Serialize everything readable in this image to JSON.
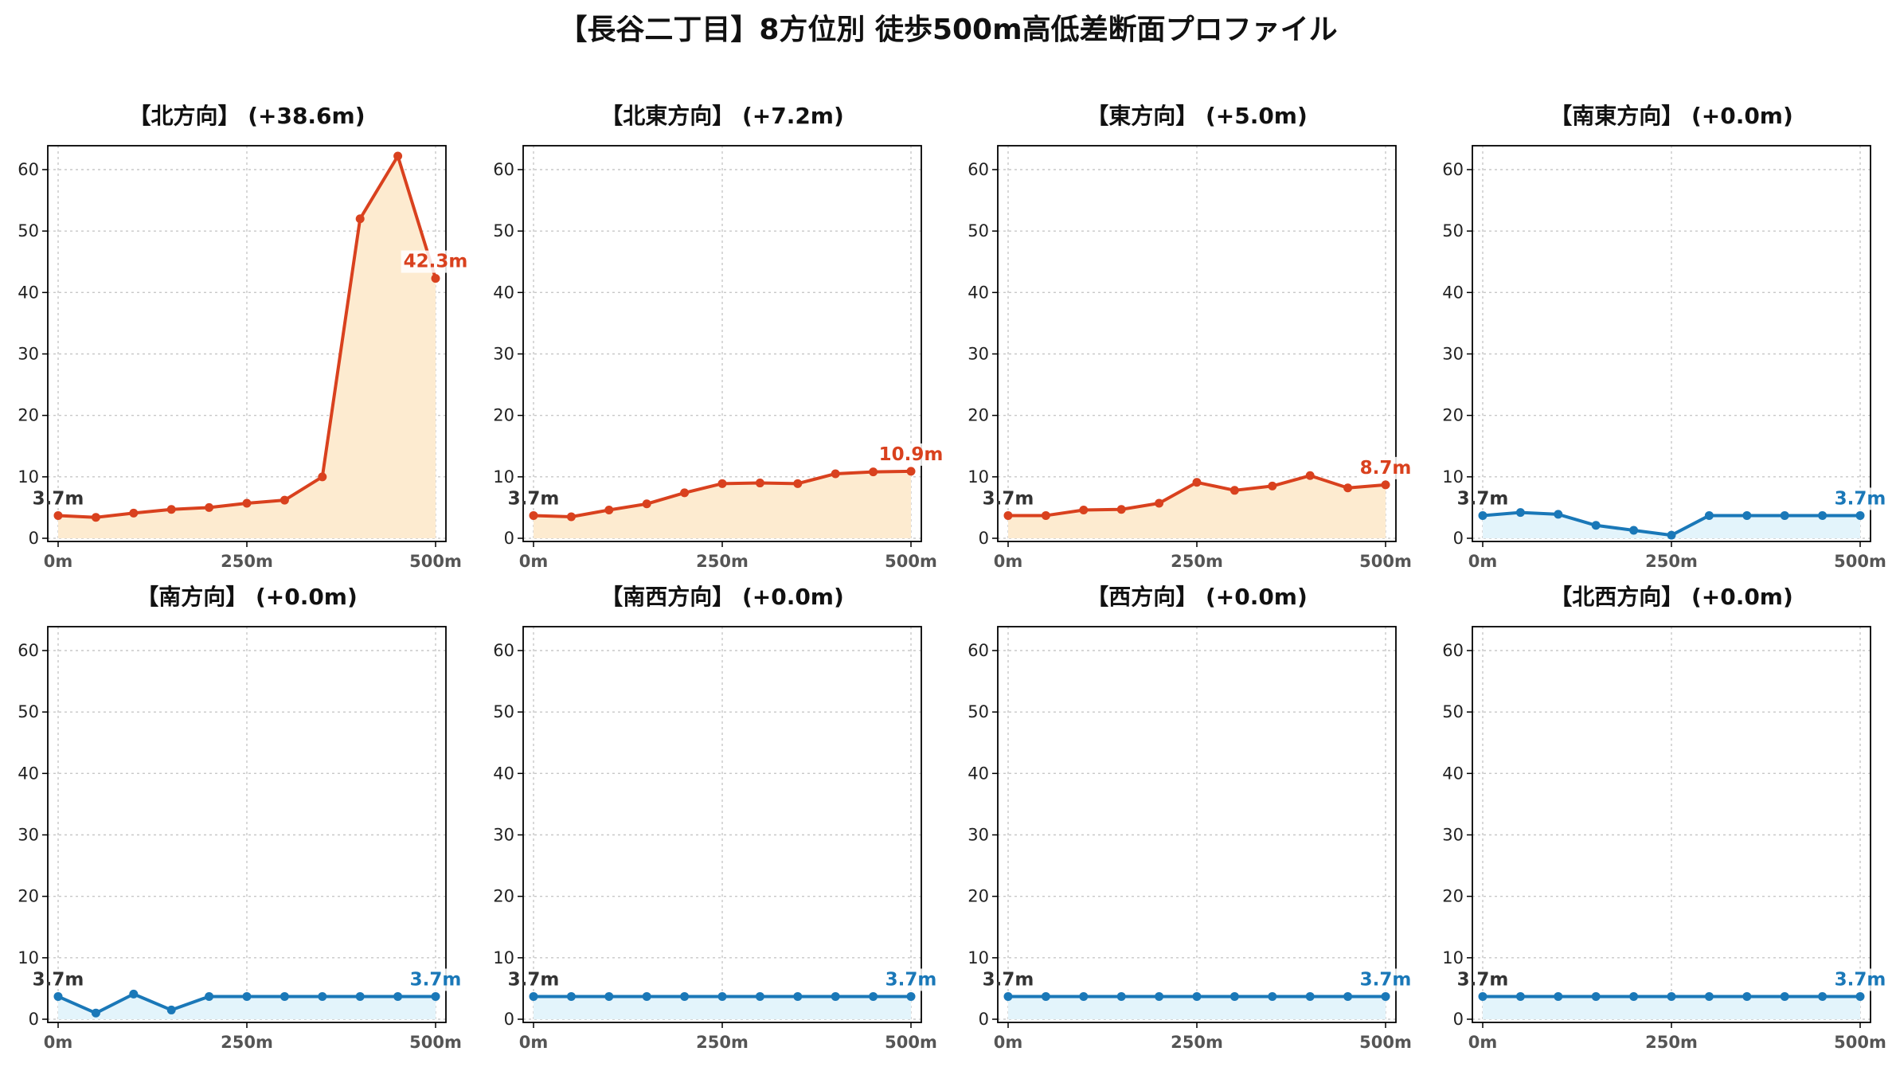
{
  "title": "【長谷二丁目】8方位別 徒歩500m高低差断面プロファイル",
  "colors": {
    "up_line": "#d9411e",
    "up_fill": "#fdebd0",
    "flat_line": "#1a78b8",
    "flat_fill": "#e3f4fb",
    "grid": "#c8c8c8",
    "start_label": "#333333"
  },
  "chart_data": [
    {
      "type": "area",
      "title": "【北方向】 (+38.6m)",
      "x": [
        0,
        50,
        100,
        150,
        200,
        250,
        300,
        350,
        400,
        450,
        500
      ],
      "values": [
        3.7,
        3.4,
        4.1,
        4.7,
        5.0,
        5.7,
        6.2,
        10.0,
        52.0,
        62.2,
        42.3
      ],
      "start_label": "3.7m",
      "end_label": "42.3m",
      "trend": "up",
      "xticks": [
        "0m",
        "250m",
        "500m"
      ],
      "yticks": [
        0,
        10,
        20,
        30,
        40,
        50,
        60
      ],
      "xlim": [
        0,
        500
      ],
      "ylim": [
        0,
        64
      ],
      "grid": true
    },
    {
      "type": "area",
      "title": "【北東方向】 (+7.2m)",
      "x": [
        0,
        50,
        100,
        150,
        200,
        250,
        300,
        350,
        400,
        450,
        500
      ],
      "values": [
        3.7,
        3.5,
        4.6,
        5.6,
        7.4,
        8.9,
        9.0,
        8.9,
        10.5,
        10.8,
        10.9
      ],
      "start_label": "3.7m",
      "end_label": "10.9m",
      "trend": "up",
      "xticks": [
        "0m",
        "250m",
        "500m"
      ],
      "yticks": [
        0,
        10,
        20,
        30,
        40,
        50,
        60
      ],
      "xlim": [
        0,
        500
      ],
      "ylim": [
        0,
        64
      ],
      "grid": true
    },
    {
      "type": "area",
      "title": "【東方向】 (+5.0m)",
      "x": [
        0,
        50,
        100,
        150,
        200,
        250,
        300,
        350,
        400,
        450,
        500
      ],
      "values": [
        3.7,
        3.7,
        4.6,
        4.7,
        5.7,
        9.1,
        7.8,
        8.5,
        10.2,
        8.2,
        8.7
      ],
      "start_label": "3.7m",
      "end_label": "8.7m",
      "trend": "up",
      "xticks": [
        "0m",
        "250m",
        "500m"
      ],
      "yticks": [
        0,
        10,
        20,
        30,
        40,
        50,
        60
      ],
      "xlim": [
        0,
        500
      ],
      "ylim": [
        0,
        64
      ],
      "grid": true
    },
    {
      "type": "area",
      "title": "【南東方向】 (+0.0m)",
      "x": [
        0,
        50,
        100,
        150,
        200,
        250,
        300,
        350,
        400,
        450,
        500
      ],
      "values": [
        3.7,
        4.2,
        3.9,
        2.1,
        1.3,
        0.5,
        3.7,
        3.7,
        3.7,
        3.7,
        3.7
      ],
      "start_label": "3.7m",
      "end_label": "3.7m",
      "trend": "flat",
      "xticks": [
        "0m",
        "250m",
        "500m"
      ],
      "yticks": [
        0,
        10,
        20,
        30,
        40,
        50,
        60
      ],
      "xlim": [
        0,
        500
      ],
      "ylim": [
        0,
        64
      ],
      "grid": true
    },
    {
      "type": "area",
      "title": "【南方向】 (+0.0m)",
      "x": [
        0,
        50,
        100,
        150,
        200,
        250,
        300,
        350,
        400,
        450,
        500
      ],
      "values": [
        3.7,
        1.0,
        4.1,
        1.5,
        3.7,
        3.7,
        3.7,
        3.7,
        3.7,
        3.7,
        3.7
      ],
      "start_label": "3.7m",
      "end_label": "3.7m",
      "trend": "flat",
      "xticks": [
        "0m",
        "250m",
        "500m"
      ],
      "yticks": [
        0,
        10,
        20,
        30,
        40,
        50,
        60
      ],
      "xlim": [
        0,
        500
      ],
      "ylim": [
        0,
        64
      ],
      "grid": true
    },
    {
      "type": "area",
      "title": "【南西方向】 (+0.0m)",
      "x": [
        0,
        50,
        100,
        150,
        200,
        250,
        300,
        350,
        400,
        450,
        500
      ],
      "values": [
        3.7,
        3.7,
        3.7,
        3.7,
        3.7,
        3.7,
        3.7,
        3.7,
        3.7,
        3.7,
        3.7
      ],
      "start_label": "3.7m",
      "end_label": "3.7m",
      "trend": "flat",
      "xticks": [
        "0m",
        "250m",
        "500m"
      ],
      "yticks": [
        0,
        10,
        20,
        30,
        40,
        50,
        60
      ],
      "xlim": [
        0,
        500
      ],
      "ylim": [
        0,
        64
      ],
      "grid": true
    },
    {
      "type": "area",
      "title": "【西方向】 (+0.0m)",
      "x": [
        0,
        50,
        100,
        150,
        200,
        250,
        300,
        350,
        400,
        450,
        500
      ],
      "values": [
        3.7,
        3.7,
        3.7,
        3.7,
        3.7,
        3.7,
        3.7,
        3.7,
        3.7,
        3.7,
        3.7
      ],
      "start_label": "3.7m",
      "end_label": "3.7m",
      "trend": "flat",
      "xticks": [
        "0m",
        "250m",
        "500m"
      ],
      "yticks": [
        0,
        10,
        20,
        30,
        40,
        50,
        60
      ],
      "xlim": [
        0,
        500
      ],
      "ylim": [
        0,
        64
      ],
      "grid": true
    },
    {
      "type": "area",
      "title": "【北西方向】 (+0.0m)",
      "x": [
        0,
        50,
        100,
        150,
        200,
        250,
        300,
        350,
        400,
        450,
        500
      ],
      "values": [
        3.7,
        3.7,
        3.7,
        3.7,
        3.7,
        3.7,
        3.7,
        3.7,
        3.7,
        3.7,
        3.7
      ],
      "start_label": "3.7m",
      "end_label": "3.7m",
      "trend": "flat",
      "xticks": [
        "0m",
        "250m",
        "500m"
      ],
      "yticks": [
        0,
        10,
        20,
        30,
        40,
        50,
        60
      ],
      "xlim": [
        0,
        500
      ],
      "ylim": [
        0,
        64
      ],
      "grid": true
    }
  ]
}
